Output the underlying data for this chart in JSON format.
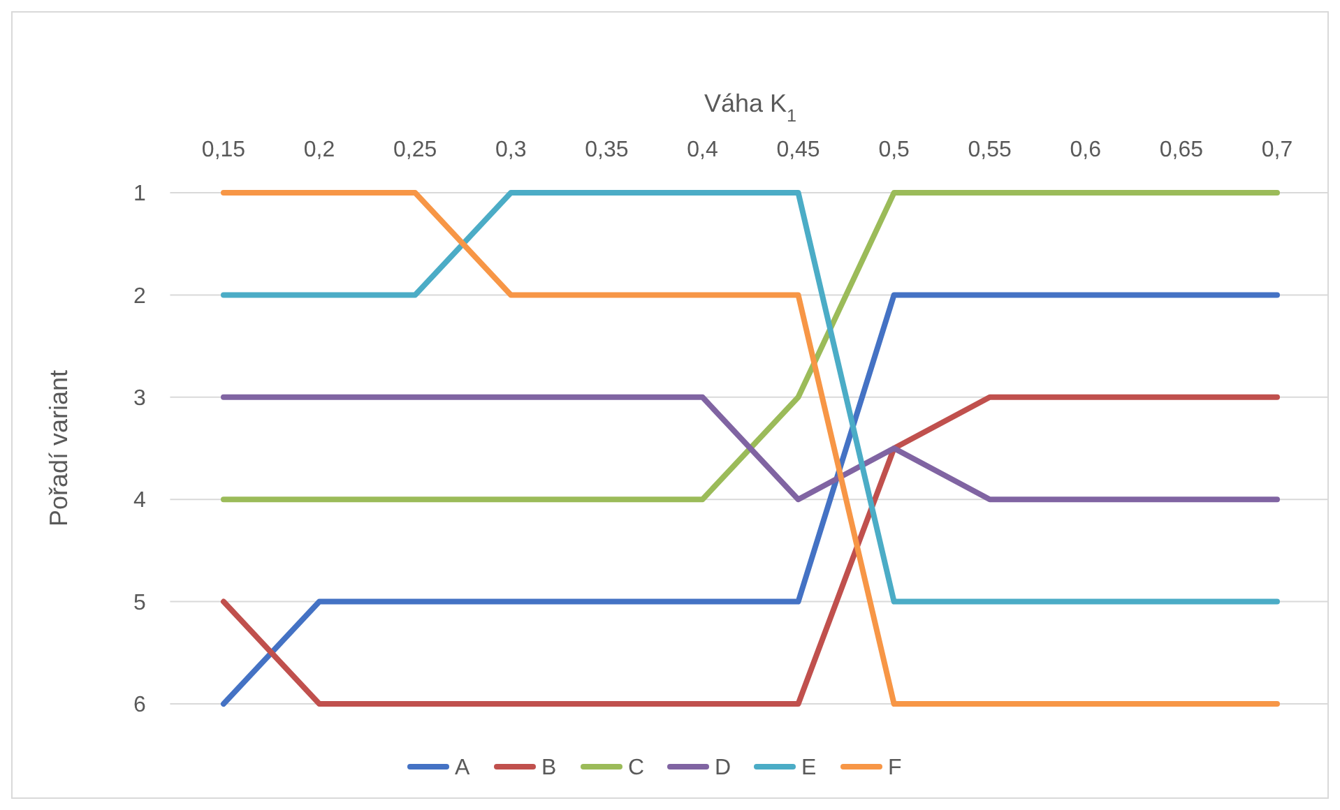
{
  "chart_data": {
    "type": "line",
    "xlabel": "Váha K$_{1}$",
    "ylabel": "Pořadí variant",
    "categories": [
      "0,15",
      "0,2",
      "0,25",
      "0,3",
      "0,35",
      "0,4",
      "0,45",
      "0,5",
      "0,55",
      "0,6",
      "0,65",
      "0,7"
    ],
    "ylim": [
      6,
      1
    ],
    "yticks": [
      1,
      2,
      3,
      4,
      5,
      6
    ],
    "grid": "y",
    "legend": "bottom",
    "marker": "none",
    "line_style": "solid",
    "series": [
      {
        "name": "A",
        "color": "#4472c4",
        "values": [
          6,
          5,
          5,
          5,
          5,
          5,
          5,
          2,
          2,
          2,
          2,
          2
        ]
      },
      {
        "name": "B",
        "color": "#c0504d",
        "values": [
          5,
          6,
          6,
          6,
          6,
          6,
          6,
          3.5,
          3,
          3,
          3,
          3
        ]
      },
      {
        "name": "C",
        "color": "#9bbb59",
        "values": [
          4,
          4,
          4,
          4,
          4,
          4,
          3,
          1,
          1,
          1,
          1,
          1
        ]
      },
      {
        "name": "D",
        "color": "#8064a2",
        "values": [
          3,
          3,
          3,
          3,
          3,
          3,
          4,
          3.5,
          4,
          4,
          4,
          4
        ]
      },
      {
        "name": "E",
        "color": "#4bacc6",
        "values": [
          2,
          2,
          2,
          1,
          1,
          1,
          1,
          5,
          5,
          5,
          5,
          5
        ]
      },
      {
        "name": "F",
        "color": "#f79646",
        "values": [
          1,
          1,
          1,
          2,
          2,
          2,
          2,
          6,
          6,
          6,
          6,
          6
        ]
      }
    ]
  }
}
